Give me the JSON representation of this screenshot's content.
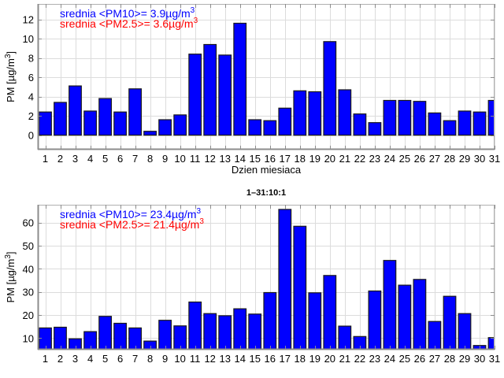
{
  "chart_data": [
    {
      "type": "bar",
      "title": "",
      "xlabel": "Dzien miesiaca",
      "ylabel": "PM [µg/m3]",
      "ylabel_main": "PM [µg/m",
      "ylabel_sup": "3",
      "ylabel_close": "]",
      "xlim": [
        0.5,
        31
      ],
      "ylim": [
        -1.5,
        13.6
      ],
      "yticks": [
        0,
        2,
        4,
        6,
        8,
        10,
        12
      ],
      "x": [
        1,
        2,
        3,
        4,
        5,
        6,
        7,
        8,
        9,
        10,
        11,
        12,
        13,
        14,
        15,
        16,
        17,
        18,
        19,
        20,
        21,
        22,
        23,
        24,
        25,
        26,
        27,
        28,
        29,
        30,
        31
      ],
      "xtick_labels": [
        "1",
        "2",
        "3",
        "4",
        "5",
        "6",
        "7",
        "8",
        "9",
        "10",
        "11",
        "12",
        "13",
        "14",
        "15",
        "16",
        "17",
        "18",
        "19",
        "20",
        "21",
        "22",
        "23",
        "24",
        "25",
        "26",
        "27",
        "28",
        "29",
        "30",
        "31"
      ],
      "grid": true,
      "series": [
        {
          "name": "PM10",
          "color": "#0000ff",
          "values": [
            2.4,
            3.4,
            5.1,
            2.5,
            3.8,
            2.4,
            4.8,
            0.4,
            1.6,
            2.1,
            8.4,
            9.4,
            8.3,
            11.6,
            1.6,
            1.5,
            2.8,
            4.6,
            4.5,
            9.7,
            4.7,
            2.2,
            1.3,
            3.6,
            3.6,
            3.5,
            2.3,
            1.5,
            2.5,
            2.4,
            3.6
          ]
        }
      ],
      "annotations": [
        {
          "text": "srednia <PM10>= 3.9µg/m",
          "sup": "3",
          "color": "#0000ff"
        },
        {
          "text": "srednia <PM2.5>= 3.6µg/m",
          "sup": "3",
          "color": "#ff0000"
        }
      ]
    },
    {
      "type": "bar",
      "title": "1–31:10:1",
      "xlabel": "",
      "ylabel": "PM [µg/m3]",
      "ylabel_main": "PM [µg/m",
      "ylabel_sup": "3",
      "ylabel_close": "]",
      "xlim": [
        0.5,
        31
      ],
      "ylim": [
        5,
        67.7
      ],
      "yticks": [
        10,
        20,
        30,
        40,
        50,
        60
      ],
      "x": [
        1,
        2,
        3,
        4,
        5,
        6,
        7,
        8,
        9,
        10,
        11,
        12,
        13,
        14,
        15,
        16,
        17,
        18,
        19,
        20,
        21,
        22,
        23,
        24,
        25,
        26,
        27,
        28,
        29,
        30,
        31
      ],
      "xtick_labels": [
        "1",
        "2",
        "3",
        "4",
        "5",
        "6",
        "7",
        "8",
        "9",
        "10",
        "11",
        "12",
        "13",
        "14",
        "15",
        "16",
        "17",
        "18",
        "19",
        "20",
        "21",
        "22",
        "23",
        "24",
        "25",
        "26",
        "27",
        "28",
        "29",
        "30",
        "31"
      ],
      "grid": true,
      "series": [
        {
          "name": "PM10",
          "color": "#0000ff",
          "values": [
            14.4,
            14.7,
            9.7,
            12.8,
            19.4,
            16.4,
            14.4,
            8.7,
            17.7,
            15.3,
            25.6,
            20.6,
            19.7,
            22.7,
            20.4,
            29.7,
            65.7,
            58.4,
            29.6,
            37.1,
            15.2,
            10.7,
            30.4,
            43.6,
            32.9,
            35.4,
            17.2,
            28.1,
            20.6,
            6.8,
            10.2
          ]
        }
      ],
      "annotations": [
        {
          "text": "srednia <PM10>= 23.4µg/m",
          "sup": "3",
          "color": "#0000ff"
        },
        {
          "text": "srednia <PM2.5>= 21.4µg/m",
          "sup": "3",
          "color": "#ff0000"
        }
      ]
    }
  ]
}
